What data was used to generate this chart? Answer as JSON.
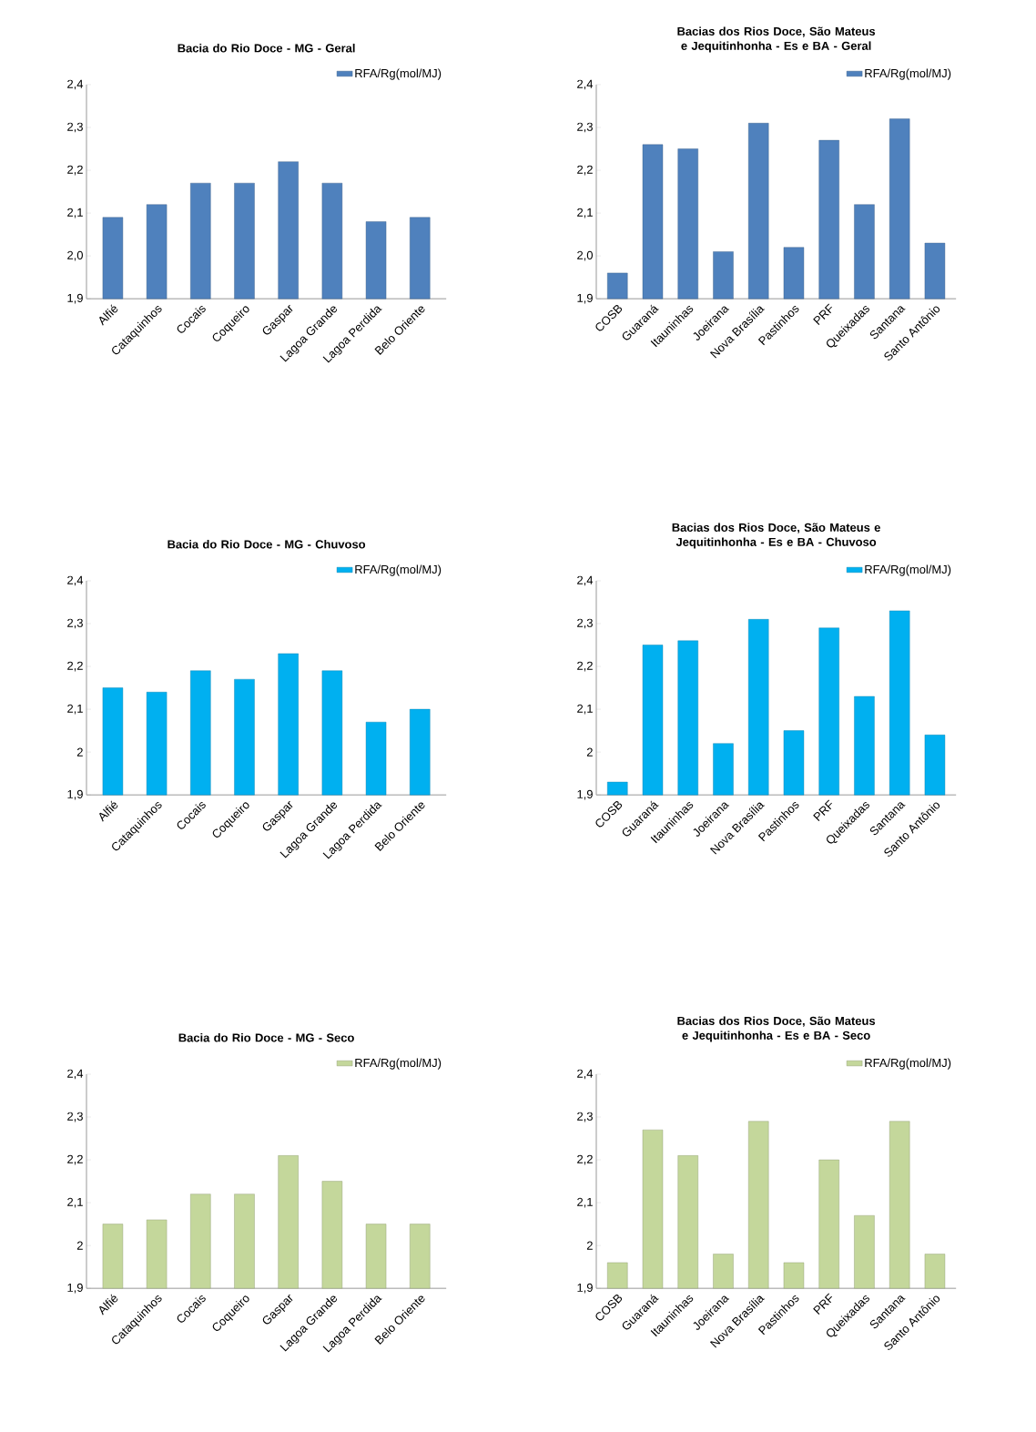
{
  "chart_data": [
    {
      "type": "bar",
      "title": "Bacia do Rio Doce - MG - Geral",
      "categories": [
        "Alfié",
        "Cataquinhos",
        "Cocais",
        "Coqueiro",
        "Gaspar",
        "Lagoa Grande",
        "Lagoa Perdida",
        "Belo Oriente"
      ],
      "series": [
        {
          "name": "RFA/Rg(mol/MJ)",
          "color": "#4f81bd",
          "values": [
            2.09,
            2.12,
            2.17,
            2.17,
            2.22,
            2.17,
            2.08,
            2.09
          ]
        }
      ],
      "ylim": [
        1.9,
        2.4
      ],
      "yticks": [
        {
          "value": 1.9,
          "label": "1,9"
        },
        {
          "value": 2.0,
          "label": "2,0"
        },
        {
          "value": 2.1,
          "label": "2,1"
        },
        {
          "value": 2.2,
          "label": "2,2"
        },
        {
          "value": 2.3,
          "label": "2,3"
        },
        {
          "value": 2.4,
          "label": "2,4"
        }
      ],
      "legend": "top right"
    },
    {
      "type": "bar",
      "title": "Bacias dos Rios Doce, São Mateus e Jequitinhonha - Es e BA - Geral",
      "categories": [
        "COSB",
        "Guaraná",
        "Itauninhas",
        "Joeirana",
        "Nova Brasília",
        "Pastinhos",
        "PRF",
        "Queixadas",
        "Santana",
        "Santo Antônio"
      ],
      "series": [
        {
          "name": "RFA/Rg(mol/MJ)",
          "color": "#4f81bd",
          "values": [
            1.96,
            2.26,
            2.25,
            2.01,
            2.31,
            2.02,
            2.27,
            2.12,
            2.32,
            2.03
          ]
        }
      ],
      "ylim": [
        1.9,
        2.4
      ],
      "yticks": [
        {
          "value": 1.9,
          "label": "1,9"
        },
        {
          "value": 2.0,
          "label": "2,0"
        },
        {
          "value": 2.1,
          "label": "2,1"
        },
        {
          "value": 2.2,
          "label": "2,2"
        },
        {
          "value": 2.3,
          "label": "2,3"
        },
        {
          "value": 2.4,
          "label": "2,4"
        }
      ],
      "legend": "top right"
    },
    {
      "type": "bar",
      "title": "Bacia do Rio Doce - MG - Chuvoso",
      "categories": [
        "Alfié",
        "Cataquinhos",
        "Cocais",
        "Coqueiro",
        "Gaspar",
        "Lagoa Grande",
        "Lagoa Perdida",
        "Belo Oriente"
      ],
      "series": [
        {
          "name": "RFA/Rg(mol/MJ)",
          "color": "#00b0f0",
          "values": [
            2.15,
            2.14,
            2.19,
            2.17,
            2.23,
            2.19,
            2.07,
            2.1
          ]
        }
      ],
      "ylim": [
        1.9,
        2.4
      ],
      "yticks": [
        {
          "value": 1.9,
          "label": "1,9"
        },
        2,
        {
          "value": 2.1,
          "label": "2,1"
        },
        {
          "value": 2.2,
          "label": "2,2"
        },
        {
          "value": 2.3,
          "label": "2,3"
        },
        {
          "value": 2.4,
          "label": "2,4"
        }
      ],
      "legend": "top right"
    },
    {
      "type": "bar",
      "title": "Bacias dos Rios Doce, São Mateus e Jequitinhonha - Es e BA  - Chuvoso",
      "categories": [
        "COSB",
        "Guaraná",
        "Itauninhas",
        "Joeirana",
        "Nova Brasília",
        "Pastinhos",
        "PRF",
        "Queixadas",
        "Santana",
        "Santo Antônio"
      ],
      "series": [
        {
          "name": "RFA/Rg(mol/MJ)",
          "color": "#00b0f0",
          "values": [
            1.93,
            2.25,
            2.26,
            2.02,
            2.31,
            2.05,
            2.29,
            2.13,
            2.33,
            2.04
          ]
        }
      ],
      "ylim": [
        1.9,
        2.4
      ],
      "yticks": [
        {
          "value": 1.9,
          "label": "1,9"
        },
        2,
        {
          "value": 2.1,
          "label": "2,1"
        },
        {
          "value": 2.2,
          "label": "2,2"
        },
        {
          "value": 2.3,
          "label": "2,3"
        },
        {
          "value": 2.4,
          "label": "2,4"
        }
      ],
      "legend": "top right"
    },
    {
      "type": "bar",
      "title": "Bacia do Rio Doce - MG  - Seco",
      "categories": [
        "Alfié",
        "Cataquinhos",
        "Cocais",
        "Coqueiro",
        "Gaspar",
        "Lagoa Grande",
        "Lagoa Perdida",
        "Belo Oriente"
      ],
      "series": [
        {
          "name": "RFA/Rg(mol/MJ)",
          "color": "#c4d79b",
          "values": [
            2.05,
            2.06,
            2.12,
            2.12,
            2.21,
            2.15,
            2.05,
            2.05
          ]
        }
      ],
      "ylim": [
        1.9,
        2.4
      ],
      "yticks": [
        {
          "value": 1.9,
          "label": "1,9"
        },
        2,
        {
          "value": 2.1,
          "label": "2,1"
        },
        {
          "value": 2.2,
          "label": "2,2"
        },
        {
          "value": 2.3,
          "label": "2,3"
        },
        {
          "value": 2.4,
          "label": "2,4"
        }
      ],
      "legend": "top right"
    },
    {
      "type": "bar",
      "title": "Bacias dos Rios Doce, São Mateus e Jequitinhonha - Es e BA  - Seco",
      "categories": [
        "COSB",
        "Guaraná",
        "Itauninhas",
        "Joeirana",
        "Nova Brasília",
        "Pastinhos",
        "PRF",
        "Queixadas",
        "Santana",
        "Santo Antônio"
      ],
      "series": [
        {
          "name": "RFA/Rg(mol/MJ)",
          "color": "#c4d79b",
          "values": [
            1.96,
            2.27,
            2.21,
            1.98,
            2.29,
            1.96,
            2.2,
            2.07,
            2.29,
            1.98
          ]
        }
      ],
      "ylim": [
        1.9,
        2.4
      ],
      "yticks": [
        {
          "value": 1.9,
          "label": "1,9"
        },
        2,
        {
          "value": 2.1,
          "label": "2,1"
        },
        {
          "value": 2.2,
          "label": "2,2"
        },
        {
          "value": 2.3,
          "label": "2,3"
        },
        {
          "value": 2.4,
          "label": "2,4"
        }
      ],
      "legend": "top right"
    }
  ]
}
